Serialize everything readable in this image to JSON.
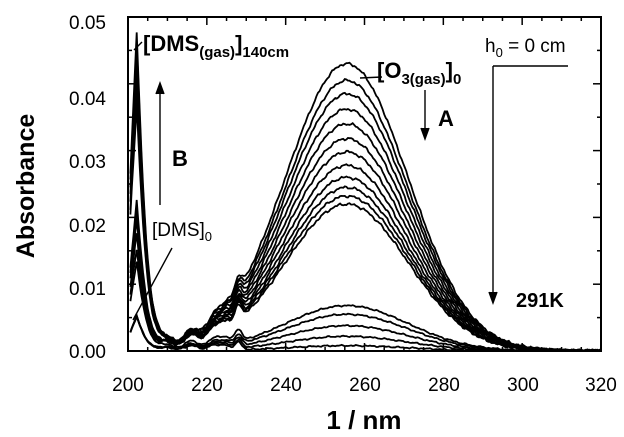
{
  "chart_data": {
    "type": "line",
    "xlabel": "1 / nm",
    "ylabel": "Absorbance",
    "xlim": [
      200,
      320
    ],
    "ylim": [
      0,
      0.05
    ],
    "x_ticks": [
      "200",
      "220",
      "240",
      "260",
      "280",
      "300",
      "320"
    ],
    "y_ticks": [
      "0.00",
      "0.01",
      "0.02",
      "0.03",
      "0.04",
      "0.05"
    ],
    "grid": false,
    "legend": "none",
    "annotations": {
      "dms_gas_label": "[DMS(gas)]140cm",
      "o3_gas_label": "[O3(gas)]0",
      "h0_label": "h0 = 0 cm",
      "arrow_a": "A",
      "arrow_b": "B",
      "dms0_label": "[DMS]0",
      "temperature": "291K"
    },
    "o3_peaks": [
      0.043,
      0.0405,
      0.0385,
      0.0362,
      0.034,
      0.0318,
      0.0298,
      0.0278,
      0.026,
      0.0245,
      0.0232,
      0.022,
      0.0068,
      0.0055,
      0.0038,
      0.0022,
      0.0008
    ],
    "dms_peaks": [
      0.0478,
      0.0462,
      0.0446,
      0.0428,
      0.0407,
      0.0385,
      0.0368,
      0.0225,
      0.0212,
      0.0196,
      0.0175,
      0.0152,
      0.0134,
      0.0052
    ]
  }
}
